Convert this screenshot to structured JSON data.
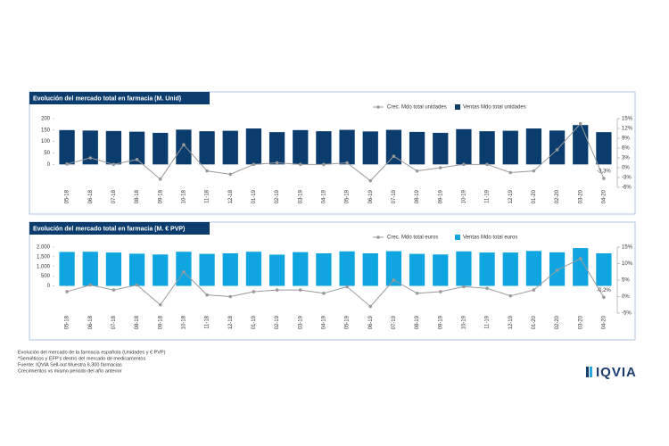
{
  "chart_data": [
    {
      "type": "combo",
      "title": "Evolución del mercado total en farmacia (M. Unid)",
      "categories": [
        "05-18",
        "06-18",
        "07-18",
        "08-18",
        "09-18",
        "10-18",
        "11-18",
        "12-18",
        "01-19",
        "02-19",
        "03-19",
        "04-19",
        "05-19",
        "06-19",
        "07-19",
        "08-19",
        "09-19",
        "10-19",
        "11-19",
        "12-19",
        "01-20",
        "02-20",
        "03-20",
        "04-20"
      ],
      "series": [
        {
          "name": "Crec. Mdo total unidades",
          "color": "#9a9a9a",
          "axis": "y2",
          "values": [
            1.1,
            3,
            1,
            2.5,
            -3.5,
            7,
            -1,
            -2,
            1,
            1.5,
            1,
            1,
            1.5,
            -4,
            3.5,
            -1,
            0,
            1,
            1,
            -1.5,
            -1,
            5.5,
            13.5,
            -3.3
          ],
          "value_labels": [
            null,
            null,
            null,
            null,
            null,
            null,
            null,
            null,
            null,
            null,
            null,
            null,
            null,
            null,
            null,
            null,
            null,
            null,
            null,
            null,
            null,
            null,
            null,
            "-3,3%"
          ]
        },
        {
          "name": "Ventas Mdo total unidades",
          "color": "#0b3c6e",
          "axis": "y",
          "values": [
            150,
            148,
            146,
            143,
            138,
            152,
            145,
            147,
            157,
            141,
            150,
            145,
            151,
            144,
            151,
            142,
            138,
            154,
            145,
            147,
            157,
            148,
            172,
            141
          ]
        }
      ],
      "ylim": [
        -100,
        200
      ],
      "yticks": [
        0,
        50,
        100,
        150,
        200
      ],
      "y2lim": [
        -6,
        15
      ],
      "y2ticks": [
        {
          "value": 15,
          "label": "15%"
        },
        {
          "value": 12,
          "label": "12%"
        },
        {
          "value": 9,
          "label": "9%"
        },
        {
          "value": 6,
          "label": "6%"
        },
        {
          "value": 3,
          "label": "3%"
        },
        {
          "value": 0,
          "label": "0%"
        },
        {
          "value": -3,
          "label": "-3%"
        },
        {
          "value": -6,
          "label": "-6%"
        }
      ]
    },
    {
      "type": "combo",
      "title": "Evolución del mercado total en farmacia (M. € PVP)",
      "categories": [
        "05-18",
        "06-18",
        "07-18",
        "08-18",
        "09-18",
        "10-18",
        "11-18",
        "12-18",
        "01-19",
        "02-19",
        "03-19",
        "04-19",
        "05-19",
        "06-19",
        "07-19",
        "08-19",
        "09-19",
        "10-19",
        "11-19",
        "12-19",
        "01-20",
        "02-20",
        "03-20",
        "04-20"
      ],
      "series": [
        {
          "name": "Crec. Mdo total euros",
          "color": "#9a9a9a",
          "axis": "y2",
          "values": [
            1.5,
            3.5,
            2,
            3.5,
            -2.5,
            7.5,
            0.5,
            0,
            1.5,
            2,
            2,
            1,
            3,
            -3,
            5,
            1,
            1.5,
            3,
            2.5,
            0.2,
            2,
            8,
            11.5,
            -0.2
          ],
          "value_labels": [
            null,
            null,
            null,
            null,
            null,
            null,
            null,
            null,
            null,
            null,
            null,
            null,
            null,
            null,
            null,
            null,
            null,
            null,
            null,
            null,
            null,
            null,
            null,
            "-0,2%"
          ]
        },
        {
          "name": "Ventas Mdo total euros",
          "color": "#0ea5e0",
          "axis": "y",
          "values": [
            1750,
            1760,
            1720,
            1660,
            1620,
            1760,
            1650,
            1680,
            1760,
            1610,
            1740,
            1680,
            1780,
            1680,
            1790,
            1650,
            1620,
            1780,
            1720,
            1720,
            1800,
            1730,
            1950,
            1680
          ]
        }
      ],
      "ylim": [
        -1400,
        2000
      ],
      "yticks": [
        0,
        500,
        {
          "value": 1000,
          "label": "1.000"
        },
        {
          "value": 1500,
          "label": "1.500"
        },
        {
          "value": 2000,
          "label": "2.000"
        }
      ],
      "y2lim": [
        -5,
        15
      ],
      "y2ticks": [
        {
          "value": 15,
          "label": "15%"
        },
        {
          "value": 10,
          "label": "10%"
        },
        {
          "value": 5,
          "label": "5%"
        },
        {
          "value": 0,
          "label": "0%"
        },
        {
          "value": -5,
          "label": "-5%"
        }
      ]
    }
  ],
  "footnotes": [
    "Evolución del mercado de la farmacia española (Unidades y € PVP)",
    "*Semiéticos y EFP's dentro del mercado de medicamentos",
    "Fuente: IQVIA Sell-out Muestra 6.300 farmacias",
    "Crecimientos vs mismo periodo del año anterior"
  ],
  "logo": "IQVIA"
}
